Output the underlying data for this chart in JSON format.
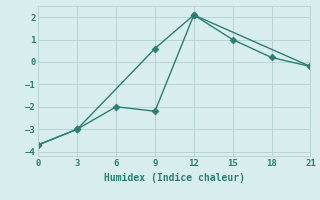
{
  "xlabel": "Humidex (Indice chaleur)",
  "line1_x": [
    0,
    3,
    9,
    12,
    15,
    18,
    21
  ],
  "line1_y": [
    -3.7,
    -3.0,
    0.6,
    2.1,
    1.0,
    0.2,
    -0.2
  ],
  "line2_x": [
    0,
    3,
    6,
    9,
    12,
    21
  ],
  "line2_y": [
    -3.7,
    -3.0,
    -2.0,
    -2.2,
    2.1,
    -0.2
  ],
  "line_color": "#2a7f72",
  "bg_color": "#d8eeee",
  "grid_color": "#b8d4d4",
  "xlim": [
    0,
    21
  ],
  "ylim": [
    -4.2,
    2.5
  ],
  "xticks": [
    0,
    3,
    6,
    9,
    12,
    15,
    18,
    21
  ],
  "yticks": [
    -4,
    -3,
    -2,
    -1,
    0,
    1,
    2
  ],
  "markersize": 3.5,
  "linewidth": 1.0,
  "tick_fontsize": 6.5,
  "xlabel_fontsize": 7.0
}
